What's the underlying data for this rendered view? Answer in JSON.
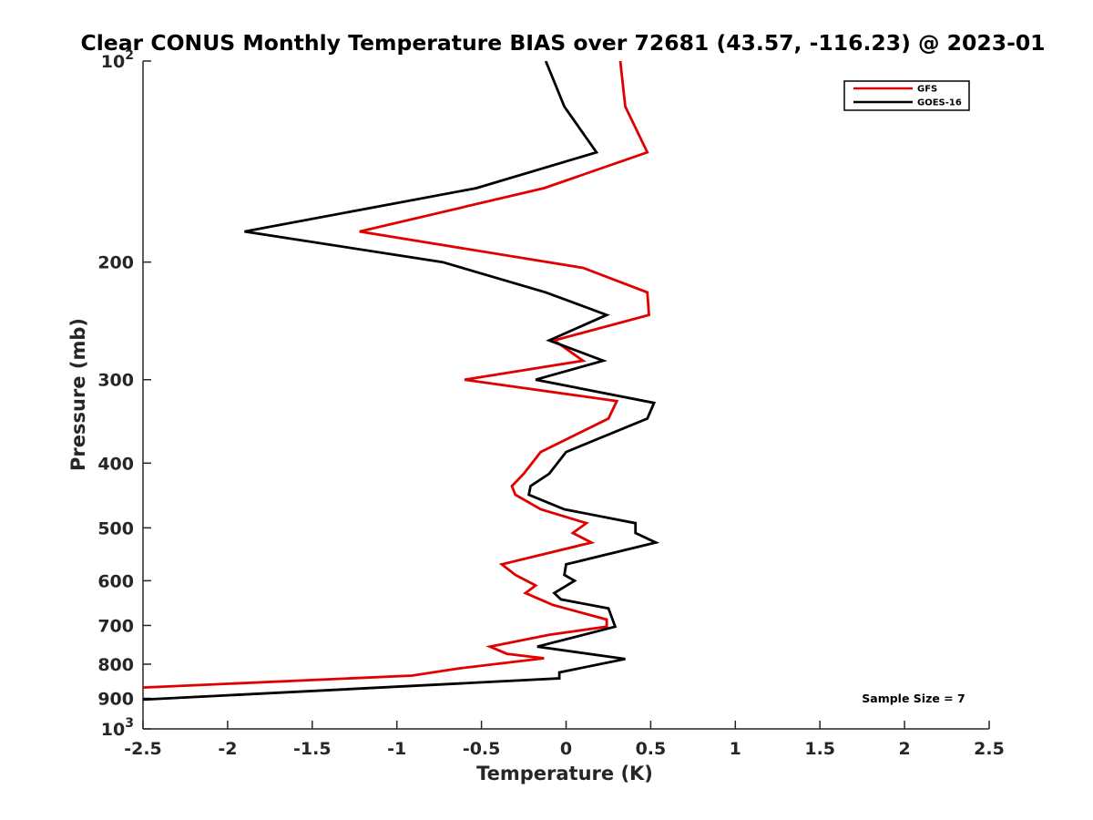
{
  "chart_data": {
    "type": "line",
    "title": "Clear CONUS Monthly Temperature BIAS over 72681 (43.57, -116.23) @ 2023-01",
    "xlabel": "Temperature (K)",
    "ylabel": "Pressure (mb)",
    "xlim": [
      -2.5,
      2.5
    ],
    "ylim": [
      100,
      1000
    ],
    "y_scale": "log",
    "y_reversed": true,
    "x_ticks": [
      "-2.5",
      "-2",
      "-1.5",
      "-1",
      "-0.5",
      "0",
      "0.5",
      "1",
      "1.5",
      "2",
      "2.5"
    ],
    "x_tick_values": [
      -2.5,
      -2,
      -1.5,
      -1,
      -0.5,
      0,
      0.5,
      1,
      1.5,
      2,
      2.5
    ],
    "y_ticks": [
      {
        "value": 100,
        "base": "10",
        "exp": "2"
      },
      {
        "value": 200,
        "label": "200"
      },
      {
        "value": 300,
        "label": "300"
      },
      {
        "value": 400,
        "label": "400"
      },
      {
        "value": 500,
        "label": "500"
      },
      {
        "value": 600,
        "label": "600"
      },
      {
        "value": 700,
        "label": "700"
      },
      {
        "value": 800,
        "label": "800"
      },
      {
        "value": 900,
        "label": "900"
      },
      {
        "value": 1000,
        "base": "10",
        "exp": "3"
      }
    ],
    "grid": false,
    "legend_position": "top-right",
    "annotation": "Sample Size = 7",
    "series": [
      {
        "name": "GFS",
        "color": "#e00000",
        "points": [
          [
            0.32,
            100
          ],
          [
            0.35,
            117
          ],
          [
            0.48,
            137
          ],
          [
            -0.13,
            155
          ],
          [
            -1.22,
            180
          ],
          [
            0.1,
            204
          ],
          [
            0.48,
            222
          ],
          [
            0.49,
            240
          ],
          [
            -0.07,
            262
          ],
          [
            0.1,
            281
          ],
          [
            -0.6,
            300
          ],
          [
            0.3,
            323
          ],
          [
            0.25,
            343
          ],
          [
            -0.15,
            385
          ],
          [
            -0.25,
            415
          ],
          [
            -0.32,
            433
          ],
          [
            -0.3,
            446
          ],
          [
            -0.15,
            469
          ],
          [
            0.12,
            492
          ],
          [
            0.04,
            509
          ],
          [
            0.15,
            526
          ],
          [
            -0.38,
            567
          ],
          [
            -0.3,
            588
          ],
          [
            -0.18,
            610
          ],
          [
            -0.24,
            626
          ],
          [
            -0.08,
            652
          ],
          [
            0.24,
            686
          ],
          [
            0.24,
            703
          ],
          [
            -0.1,
            723
          ],
          [
            -0.45,
            753
          ],
          [
            -0.35,
            772
          ],
          [
            -0.13,
            784
          ],
          [
            -0.62,
            811
          ],
          [
            -0.91,
            832
          ],
          [
            -2.5,
            867
          ]
        ]
      },
      {
        "name": "GOES-16",
        "color": "#000000",
        "points": [
          [
            -0.12,
            100
          ],
          [
            -0.01,
            117
          ],
          [
            0.18,
            137
          ],
          [
            -0.53,
            155
          ],
          [
            -1.9,
            180
          ],
          [
            -0.73,
            200
          ],
          [
            -0.12,
            222
          ],
          [
            0.24,
            240
          ],
          [
            -0.1,
            262
          ],
          [
            0.22,
            281
          ],
          [
            -0.18,
            300
          ],
          [
            0.52,
            325
          ],
          [
            0.48,
            343
          ],
          [
            0.0,
            385
          ],
          [
            -0.1,
            415
          ],
          [
            -0.21,
            433
          ],
          [
            -0.22,
            446
          ],
          [
            -0.01,
            469
          ],
          [
            0.41,
            492
          ],
          [
            0.41,
            509
          ],
          [
            0.53,
            526
          ],
          [
            0.0,
            567
          ],
          [
            -0.01,
            588
          ],
          [
            0.05,
            600
          ],
          [
            -0.07,
            626
          ],
          [
            -0.03,
            640
          ],
          [
            0.25,
            660
          ],
          [
            0.29,
            703
          ],
          [
            -0.17,
            753
          ],
          [
            0.35,
            786
          ],
          [
            -0.04,
            823
          ],
          [
            -0.04,
            840
          ],
          [
            -0.55,
            853
          ],
          [
            -2.5,
            904
          ]
        ]
      }
    ]
  }
}
